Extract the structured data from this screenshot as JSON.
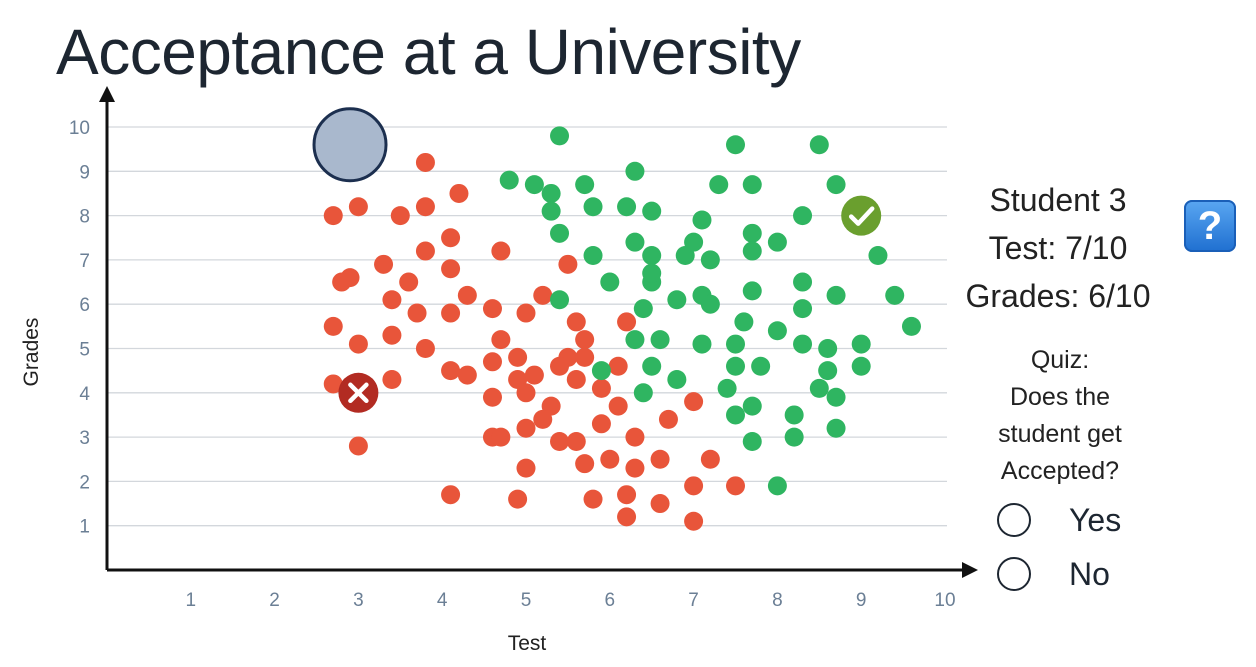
{
  "title": "Acceptance at a University",
  "chart_data": {
    "type": "scatter",
    "xlabel": "Test",
    "ylabel": "Grades",
    "xlim": [
      0,
      10
    ],
    "ylim": [
      0,
      10
    ],
    "xticks": [
      "1",
      "2",
      "3",
      "4",
      "5",
      "6",
      "7",
      "8",
      "9",
      "10"
    ],
    "yticks": [
      "1",
      "2",
      "3",
      "4",
      "5",
      "6",
      "7",
      "8",
      "9",
      "10"
    ],
    "grid": "horizontal",
    "series": [
      {
        "status": "rejected",
        "color": "#e8553a",
        "points": [
          [
            3.0,
            8.2
          ],
          [
            2.7,
            8.0
          ],
          [
            3.5,
            8.0
          ],
          [
            3.8,
            9.2
          ],
          [
            3.8,
            8.2
          ],
          [
            4.2,
            8.5
          ],
          [
            4.1,
            7.5
          ],
          [
            3.8,
            7.2
          ],
          [
            4.7,
            7.2
          ],
          [
            2.8,
            6.5
          ],
          [
            2.9,
            6.6
          ],
          [
            3.3,
            6.9
          ],
          [
            3.6,
            6.5
          ],
          [
            4.1,
            6.8
          ],
          [
            3.4,
            6.1
          ],
          [
            3.7,
            5.8
          ],
          [
            4.1,
            5.8
          ],
          [
            4.3,
            6.2
          ],
          [
            2.7,
            5.5
          ],
          [
            3.0,
            5.1
          ],
          [
            3.4,
            5.3
          ],
          [
            3.8,
            5.0
          ],
          [
            2.7,
            4.2
          ],
          [
            3.4,
            4.3
          ],
          [
            4.1,
            4.5
          ],
          [
            4.3,
            4.4
          ],
          [
            3.0,
            2.8
          ],
          [
            4.1,
            1.7
          ],
          [
            5.5,
            6.9
          ],
          [
            5.2,
            6.2
          ],
          [
            4.6,
            5.9
          ],
          [
            5.0,
            5.8
          ],
          [
            4.7,
            5.2
          ],
          [
            4.6,
            4.7
          ],
          [
            4.9,
            4.8
          ],
          [
            4.9,
            4.3
          ],
          [
            5.1,
            4.4
          ],
          [
            5.0,
            4.0
          ],
          [
            4.6,
            3.9
          ],
          [
            5.3,
            3.7
          ],
          [
            5.2,
            3.4
          ],
          [
            5.0,
            3.2
          ],
          [
            4.6,
            3.0
          ],
          [
            4.7,
            3.0
          ],
          [
            5.0,
            2.3
          ],
          [
            4.9,
            1.6
          ],
          [
            5.6,
            5.6
          ],
          [
            5.7,
            5.2
          ],
          [
            5.5,
            4.8
          ],
          [
            5.7,
            4.8
          ],
          [
            5.4,
            4.6
          ],
          [
            5.6,
            4.3
          ],
          [
            5.4,
            2.9
          ],
          [
            5.6,
            2.9
          ],
          [
            5.7,
            2.4
          ],
          [
            6.2,
            5.6
          ],
          [
            6.1,
            4.6
          ],
          [
            5.9,
            4.1
          ],
          [
            6.1,
            3.7
          ],
          [
            5.9,
            3.3
          ],
          [
            6.0,
            2.5
          ],
          [
            5.8,
            1.6
          ],
          [
            6.3,
            3.0
          ],
          [
            6.3,
            2.3
          ],
          [
            6.2,
            1.7
          ],
          [
            6.2,
            1.2
          ],
          [
            6.7,
            3.4
          ],
          [
            6.6,
            2.5
          ],
          [
            6.6,
            1.5
          ],
          [
            7.0,
            3.8
          ],
          [
            7.0,
            1.9
          ],
          [
            7.0,
            1.1
          ],
          [
            7.2,
            2.5
          ],
          [
            7.5,
            1.9
          ]
        ]
      },
      {
        "status": "accepted",
        "color": "#2fb561",
        "points": [
          [
            5.4,
            9.8
          ],
          [
            4.8,
            8.8
          ],
          [
            5.1,
            8.7
          ],
          [
            5.3,
            8.5
          ],
          [
            5.7,
            8.7
          ],
          [
            5.8,
            8.2
          ],
          [
            5.3,
            8.1
          ],
          [
            6.3,
            9.0
          ],
          [
            6.2,
            8.2
          ],
          [
            6.5,
            8.1
          ],
          [
            7.5,
            9.6
          ],
          [
            8.5,
            9.6
          ],
          [
            7.3,
            8.7
          ],
          [
            7.7,
            8.7
          ],
          [
            8.7,
            8.7
          ],
          [
            7.1,
            7.9
          ],
          [
            7.7,
            7.6
          ],
          [
            8.3,
            8.0
          ],
          [
            5.4,
            7.6
          ],
          [
            5.8,
            7.1
          ],
          [
            6.3,
            7.4
          ],
          [
            6.5,
            7.1
          ],
          [
            6.9,
            7.1
          ],
          [
            7.0,
            7.4
          ],
          [
            7.2,
            7.0
          ],
          [
            7.7,
            7.2
          ],
          [
            8.0,
            7.4
          ],
          [
            9.2,
            7.1
          ],
          [
            6.0,
            6.5
          ],
          [
            6.5,
            6.5
          ],
          [
            6.5,
            6.7
          ],
          [
            6.8,
            6.1
          ],
          [
            7.1,
            6.2
          ],
          [
            7.2,
            6.0
          ],
          [
            7.7,
            6.3
          ],
          [
            8.3,
            6.5
          ],
          [
            8.7,
            6.2
          ],
          [
            9.4,
            6.2
          ],
          [
            5.4,
            6.1
          ],
          [
            6.4,
            5.9
          ],
          [
            8.3,
            5.9
          ],
          [
            9.6,
            5.5
          ],
          [
            6.3,
            5.2
          ],
          [
            6.6,
            5.2
          ],
          [
            7.1,
            5.1
          ],
          [
            7.5,
            5.1
          ],
          [
            7.6,
            5.6
          ],
          [
            8.0,
            5.4
          ],
          [
            8.3,
            5.1
          ],
          [
            8.6,
            5.0
          ],
          [
            9.0,
            5.1
          ],
          [
            5.9,
            4.5
          ],
          [
            6.5,
            4.6
          ],
          [
            7.5,
            4.6
          ],
          [
            7.8,
            4.6
          ],
          [
            8.6,
            4.5
          ],
          [
            9.0,
            4.6
          ],
          [
            6.8,
            4.3
          ],
          [
            7.4,
            4.1
          ],
          [
            6.4,
            4.0
          ],
          [
            8.5,
            4.1
          ],
          [
            8.7,
            3.9
          ],
          [
            7.5,
            3.5
          ],
          [
            7.7,
            3.7
          ],
          [
            8.2,
            3.5
          ],
          [
            7.7,
            2.9
          ],
          [
            8.2,
            3.0
          ],
          [
            8.7,
            3.2
          ],
          [
            8.0,
            1.9
          ]
        ]
      }
    ],
    "highlighted_points": [
      {
        "status": "rejected",
        "marker": "x",
        "color": "#b22b22",
        "x": 3.0,
        "y": 4.0
      },
      {
        "status": "accepted",
        "marker": "check",
        "color": "#6a9f2e",
        "x": 9.0,
        "y": 8.0
      },
      {
        "status": "query",
        "marker": "circle",
        "color": "#a9b8cd",
        "x": 2.9,
        "y": 9.6
      }
    ]
  },
  "student": {
    "name": "Student 3",
    "test": "Test: 7/10",
    "grades": "Grades: 6/10"
  },
  "help_icon": "question-mark-icon",
  "quiz": {
    "line1": "Quiz:",
    "line2": "Does the",
    "line3": "student get",
    "line4": "Accepted?",
    "options": [
      {
        "label": "Yes",
        "selected": false
      },
      {
        "label": "No",
        "selected": false
      }
    ]
  }
}
